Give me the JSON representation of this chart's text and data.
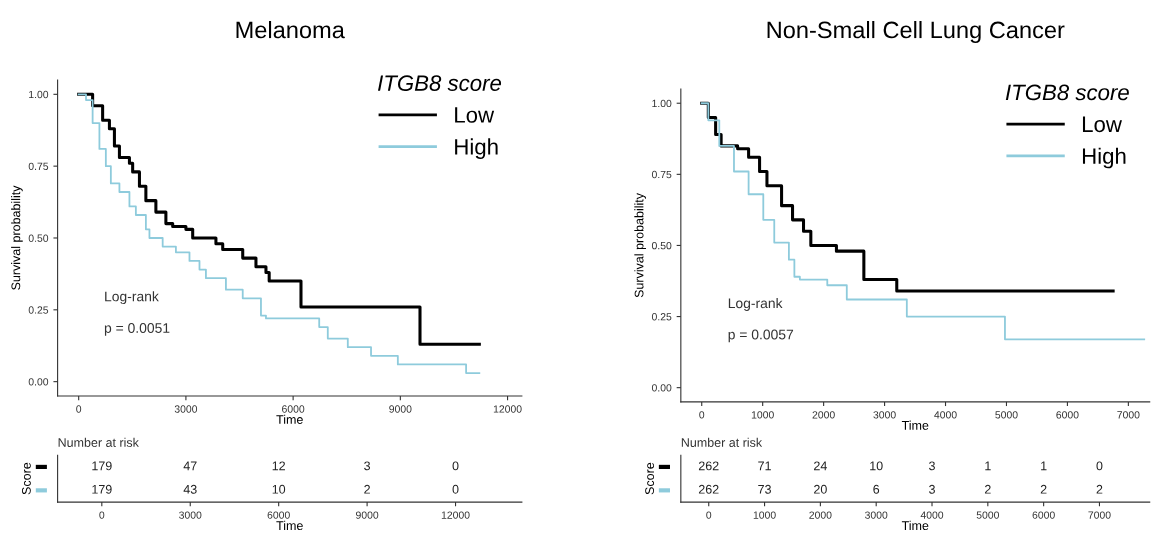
{
  "chart_data": [
    {
      "type": "step",
      "title": "Melanoma",
      "xlabel": "Time",
      "ylabel": "Survival probability",
      "legend_title": "ITGB8 score",
      "legend": "top right",
      "grid": false,
      "xlim": [
        -590,
        12400
      ],
      "xticks": [
        0,
        3000,
        6000,
        9000,
        12000
      ],
      "ylim": [
        -0.05,
        1.05
      ],
      "yticks": [
        {
          "value": 0,
          "label": "0.00"
        },
        {
          "value": 0.25,
          "label": "0.25"
        },
        {
          "value": 0.5,
          "label": "0.50"
        },
        {
          "value": 0.75,
          "label": "0.75"
        },
        {
          "value": 1,
          "label": "1.00"
        }
      ],
      "annotations": [
        "Log-rank",
        "p = 0.0051"
      ],
      "series": [
        {
          "name": "Low",
          "color": "#000000",
          "x": [
            0,
            200,
            390,
            670,
            860,
            1000,
            1140,
            1420,
            1510,
            1700,
            1880,
            2160,
            2440,
            2630,
            3000,
            3190,
            3560,
            3840,
            4030,
            4500,
            4590,
            4960,
            5240,
            5330,
            6130,
            6220,
            9530,
            9550,
            11210
          ],
          "values": [
            1.0,
            1.0,
            0.96,
            0.91,
            0.88,
            0.82,
            0.78,
            0.76,
            0.73,
            0.68,
            0.63,
            0.59,
            0.55,
            0.54,
            0.53,
            0.5,
            0.5,
            0.48,
            0.46,
            0.46,
            0.43,
            0.4,
            0.38,
            0.35,
            0.35,
            0.26,
            0.26,
            0.13,
            0.13
          ]
        },
        {
          "name": "High",
          "color": "#8ecbdc",
          "x": [
            0,
            205,
            390,
            580,
            760,
            900,
            1140,
            1420,
            1600,
            1880,
            1980,
            2350,
            2720,
            3100,
            3380,
            3560,
            3940,
            4120,
            4590,
            5010,
            5100,
            5240,
            6590,
            6730,
            6970,
            7530,
            8180,
            8930,
            10840,
            11210
          ],
          "values": [
            1.0,
            0.98,
            0.9,
            0.81,
            0.75,
            0.69,
            0.66,
            0.61,
            0.58,
            0.53,
            0.5,
            0.47,
            0.45,
            0.42,
            0.39,
            0.36,
            0.36,
            0.32,
            0.29,
            0.29,
            0.23,
            0.22,
            0.22,
            0.19,
            0.15,
            0.12,
            0.09,
            0.06,
            0.03,
            0.03
          ]
        }
      ]
    },
    {
      "type": "step",
      "title": "Non-Small Cell Lung Cancer",
      "xlabel": "Time",
      "ylabel": "Survival probability",
      "legend_title": "ITGB8 score",
      "legend": "top right",
      "grid": false,
      "xlim": [
        -343,
        7350
      ],
      "xticks": [
        0,
        1000,
        2000,
        3000,
        4000,
        5000,
        6000,
        7000
      ],
      "ylim": [
        -0.05,
        1.05
      ],
      "yticks": [
        {
          "value": 0,
          "label": "0.00"
        },
        {
          "value": 0.25,
          "label": "0.25"
        },
        {
          "value": 0.5,
          "label": "0.50"
        },
        {
          "value": 0.75,
          "label": "0.75"
        },
        {
          "value": 1,
          "label": "1.00"
        }
      ],
      "annotations": [
        "Log-rank",
        "p = 0.0057"
      ],
      "series": [
        {
          "name": "Low",
          "color": "#000000",
          "x": [
            0,
            108,
            228,
            318,
            589,
            769,
            949,
            1070,
            1190,
            1310,
            1490,
            1670,
            1790,
            2150,
            2210,
            2600,
            2660,
            3140,
            3200,
            6750
          ],
          "values": [
            1.0,
            0.95,
            0.89,
            0.85,
            0.84,
            0.81,
            0.76,
            0.71,
            0.71,
            0.64,
            0.59,
            0.55,
            0.5,
            0.5,
            0.48,
            0.48,
            0.38,
            0.38,
            0.34,
            0.34
          ]
        },
        {
          "name": "High",
          "color": "#8ecbdc",
          "x": [
            0,
            108,
            288,
            529,
            769,
            1010,
            1190,
            1430,
            1520,
            1610,
            1970,
            2060,
            2300,
            2380,
            3350,
            3365,
            4960,
            4975,
            7260
          ],
          "values": [
            1.0,
            0.94,
            0.85,
            0.76,
            0.68,
            0.59,
            0.51,
            0.45,
            0.39,
            0.38,
            0.38,
            0.36,
            0.36,
            0.31,
            0.31,
            0.25,
            0.25,
            0.17,
            0.17
          ]
        }
      ]
    },
    {
      "type": "heatmap",
      "title": "Number at risk",
      "xlabel": "Time",
      "ylabel": "Score",
      "data_labels": true,
      "categories": [
        "0",
        "3000",
        "6000",
        "9000",
        "12000"
      ],
      "y_categories": [
        null,
        null
      ],
      "colors": [
        "#000000",
        "#8ecbdc"
      ],
      "cells": [
        [
          179,
          47,
          12,
          3,
          0
        ],
        [
          179,
          43,
          10,
          2,
          0
        ]
      ]
    },
    {
      "type": "heatmap",
      "title": "Number at risk",
      "xlabel": "Time",
      "ylabel": "Score",
      "data_labels": true,
      "categories": [
        "0",
        "1000",
        "2000",
        "3000",
        "4000",
        "5000",
        "6000",
        "7000"
      ],
      "y_categories": [
        null,
        null
      ],
      "colors": [
        "#000000",
        "#8ecbdc"
      ],
      "cells": [
        [
          262,
          71,
          24,
          10,
          3,
          1,
          1,
          0
        ],
        [
          262,
          73,
          20,
          6,
          3,
          2,
          2,
          2
        ]
      ]
    }
  ]
}
